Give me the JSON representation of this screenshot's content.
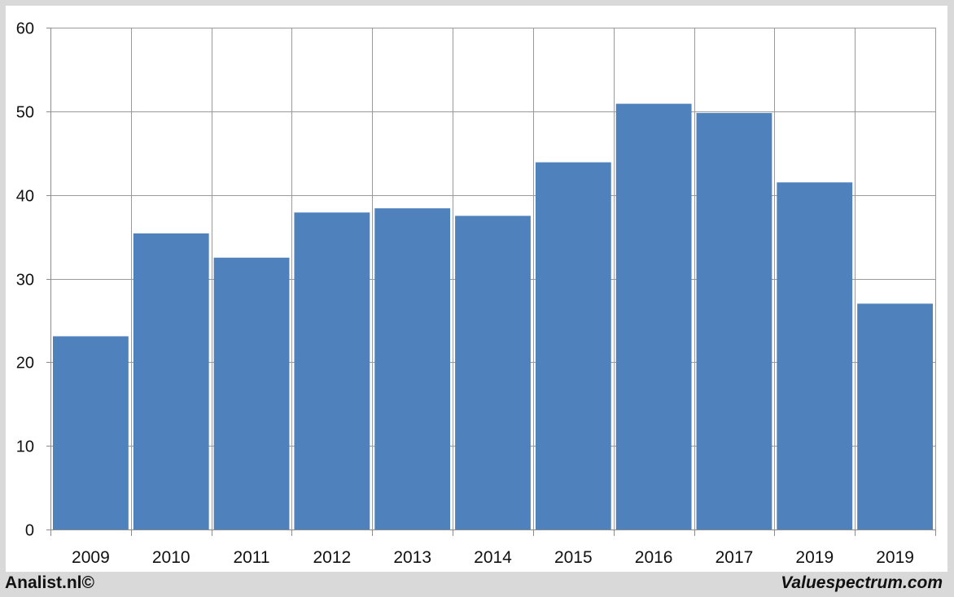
{
  "chart_data": {
    "type": "bar",
    "categories": [
      "2009",
      "2010",
      "2011",
      "2012",
      "2013",
      "2014",
      "2015",
      "2016",
      "2017",
      "2019",
      "2019"
    ],
    "values": [
      23.1,
      35.4,
      32.5,
      37.9,
      38.4,
      37.5,
      43.9,
      50.9,
      49.8,
      41.5,
      27.0
    ],
    "ylim": [
      0,
      60
    ],
    "yticks": [
      0,
      10,
      20,
      30,
      40,
      50,
      60
    ],
    "grid": true,
    "bar_color": "#4f81bd",
    "title": "",
    "xlabel": "",
    "ylabel": ""
  },
  "footer": {
    "left_text": "Analist.nl©",
    "right_text": "Valuespectrum.com"
  }
}
